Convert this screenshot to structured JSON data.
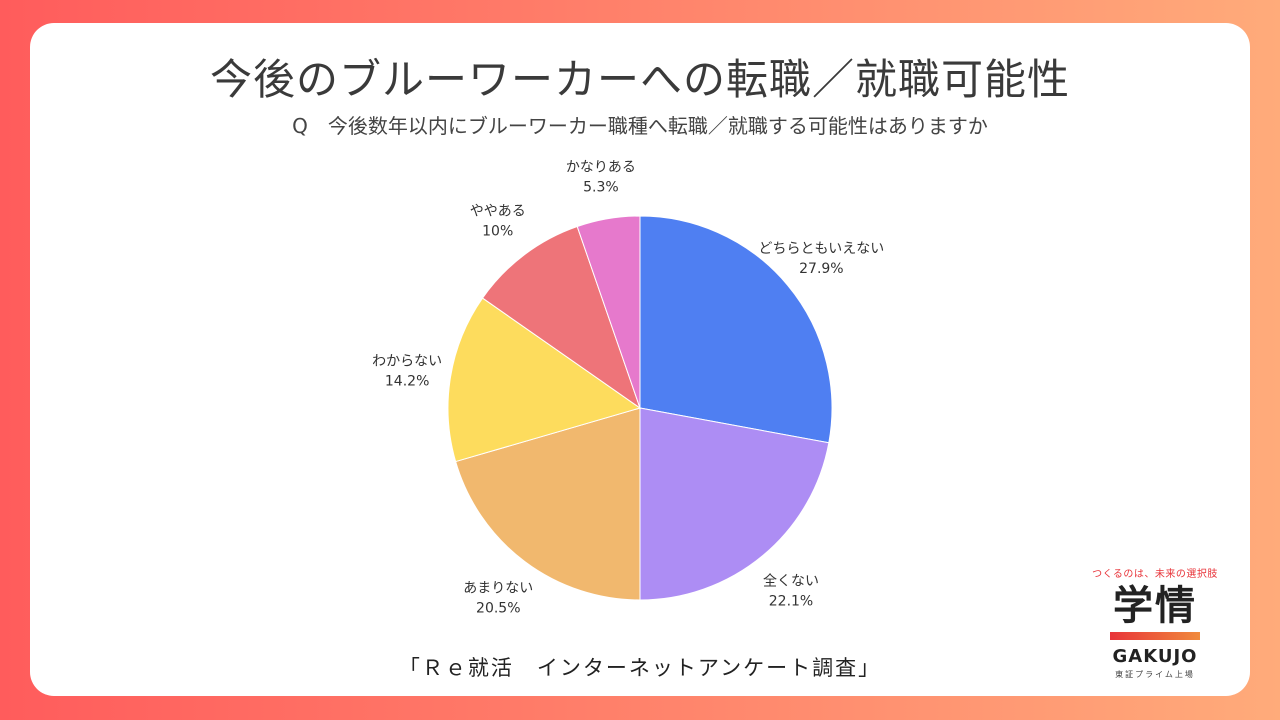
{
  "title": "今後のブルーワーカーへの転職／就職可能性",
  "subtitle": "Q　今後数年以内にブルーワーカー職種へ転職／就職する可能性はありますか",
  "source": "「Ｒｅ就活　インターネットアンケート調査」",
  "logo": {
    "tagline": "つくるのは、未来の選択肢",
    "name": "学情",
    "name_en": "GAKUJO",
    "sub": "東証プライム上場"
  },
  "chart_data": {
    "type": "pie",
    "title": "",
    "slices": [
      {
        "label": "どちらともいえない",
        "value": 27.9,
        "display": "27.9%",
        "color": "#4f7ff2"
      },
      {
        "label": "全くない",
        "value": 22.1,
        "display": "22.1%",
        "color": "#ad8df4"
      },
      {
        "label": "あまりない",
        "value": 20.5,
        "display": "20.5%",
        "color": "#f1b86e"
      },
      {
        "label": "わからない",
        "value": 14.2,
        "display": "14.2%",
        "color": "#fddc5d"
      },
      {
        "label": "ややある",
        "value": 10,
        "display": "10%",
        "color": "#ee7479"
      },
      {
        "label": "かなりある",
        "value": 5.3,
        "display": "5.3%",
        "color": "#e679cc"
      }
    ],
    "start_position": "top",
    "direction": "clockwise",
    "legend": "none"
  }
}
